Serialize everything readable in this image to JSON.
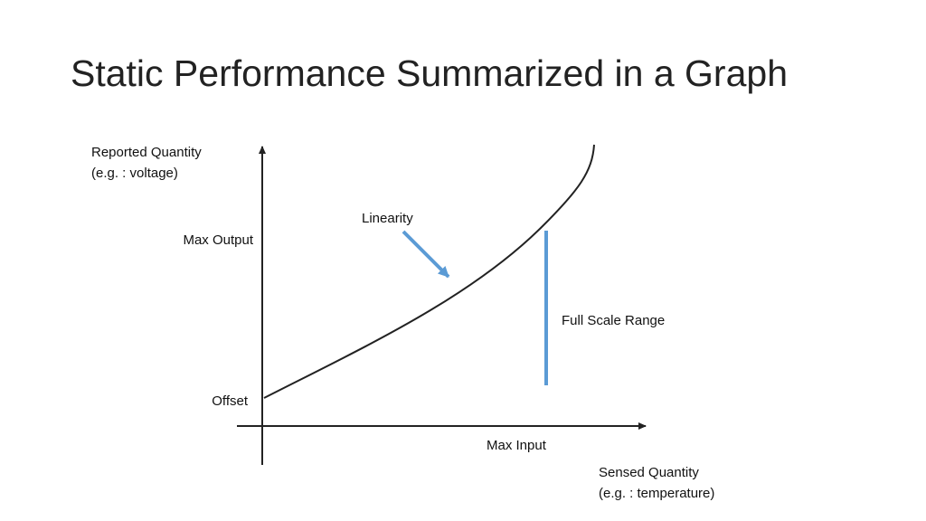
{
  "slide": {
    "title": "Static Performance Summarized in a Graph"
  },
  "diagram": {
    "y_axis_label_line1": "Reported Quantity",
    "y_axis_label_line2": "(e.g. : voltage)",
    "x_axis_label_line1": "Sensed Quantity",
    "x_axis_label_line2": "(e.g. : temperature)",
    "max_output_label": "Max Output",
    "offset_label": "Offset",
    "max_input_label": "Max Input",
    "linearity_label": "Linearity",
    "full_scale_range_label": "Full Scale Range",
    "colors": {
      "axis": "#222222",
      "curve": "#222222",
      "accent": "#5b9bd5"
    }
  }
}
